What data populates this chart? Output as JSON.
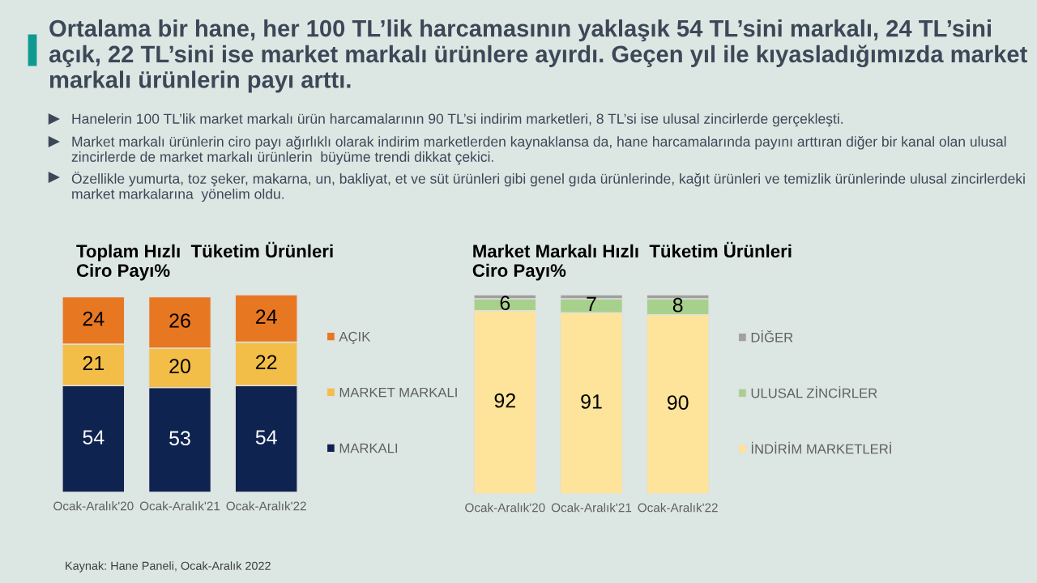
{
  "chart_data": [
    {
      "type": "other",
      "title": "Ortalama bir hane, her 100 TL’lik harcamasının yaklaşık 54 TL’sini markalı, 24 TL’sini açık, 22 TL’sini ise market markalı ürünlere ayırdı. Geçen yıl ile kıyasladığımızda market markalı ürünlerin payı arttı.",
      "annotations": [
        "Hanelerin 100 TL’lik market markalı ürün harcamalarının 90 TL’si indirim marketleri, 8 TL’si ise ulusal zincirlerde gerçekleşti.",
        "Market markalı ürünlerin ciro payı ağırlıklı olarak indirim marketlerden kaynaklansa da, hane harcamalarında payını arttıran diğer bir kanal olan ulusal zincirlerde de market markalı ürünlerin  büyüme trendi dikkat çekici.",
        "Özellikle yumurta, toz şeker, makarna, un, bakliyat, et ve süt ürünleri gibi genel gıda ürünlerinde, kağıt ürünleri ve temizlik ürünlerinde ulusal zincirlerdeki market markalarına  yönelim oldu.",
        "Kaynak: Hane Paneli, Ocak-Aralık 2022"
      ]
    },
    {
      "type": "bar",
      "stacked": true,
      "title": "Toplam Hızlı  Tüketim Ürünleri\nCiro Payı%",
      "categories": [
        "Ocak-Aralık'20",
        "Ocak-Aralık'21",
        "Ocak-Aralık'22"
      ],
      "series": [
        {
          "name": "MARKALI",
          "color": "#0e2350",
          "values": [
            54,
            53,
            54
          ]
        },
        {
          "name": "MARKET MARKALI",
          "color": "#f2be48",
          "values": [
            21,
            20,
            22
          ]
        },
        {
          "name": "AÇIK",
          "color": "#e87722",
          "values": [
            24,
            26,
            24
          ]
        }
      ],
      "data_labels": true,
      "legend": "right",
      "tick_labels": "x"
    },
    {
      "type": "bar",
      "stacked": true,
      "title": "Market Markalı Hızlı  Tüketim Ürünleri\nCiro Payı%",
      "categories": [
        "Ocak-Aralık'20",
        "Ocak-Aralık'21",
        "Ocak-Aralık'22"
      ],
      "series": [
        {
          "name": "İNDİRİM MARKETLERİ",
          "color": "#fde49a",
          "values": [
            92,
            91,
            90
          ],
          "value_labels": [
            "92",
            "91",
            "90"
          ]
        },
        {
          "name": "ULUSAL ZİNCİRLER",
          "color": "#a8d08d",
          "values": [
            6,
            7,
            8
          ],
          "value_labels": [
            "6",
            "7",
            "8"
          ]
        },
        {
          "name": "DİĞER",
          "color": "#a0a0a0",
          "values": [
            2,
            2,
            2
          ],
          "value_labels": [
            null,
            null,
            null
          ]
        }
      ],
      "legend": "right",
      "tick_labels": "x"
    }
  ]
}
